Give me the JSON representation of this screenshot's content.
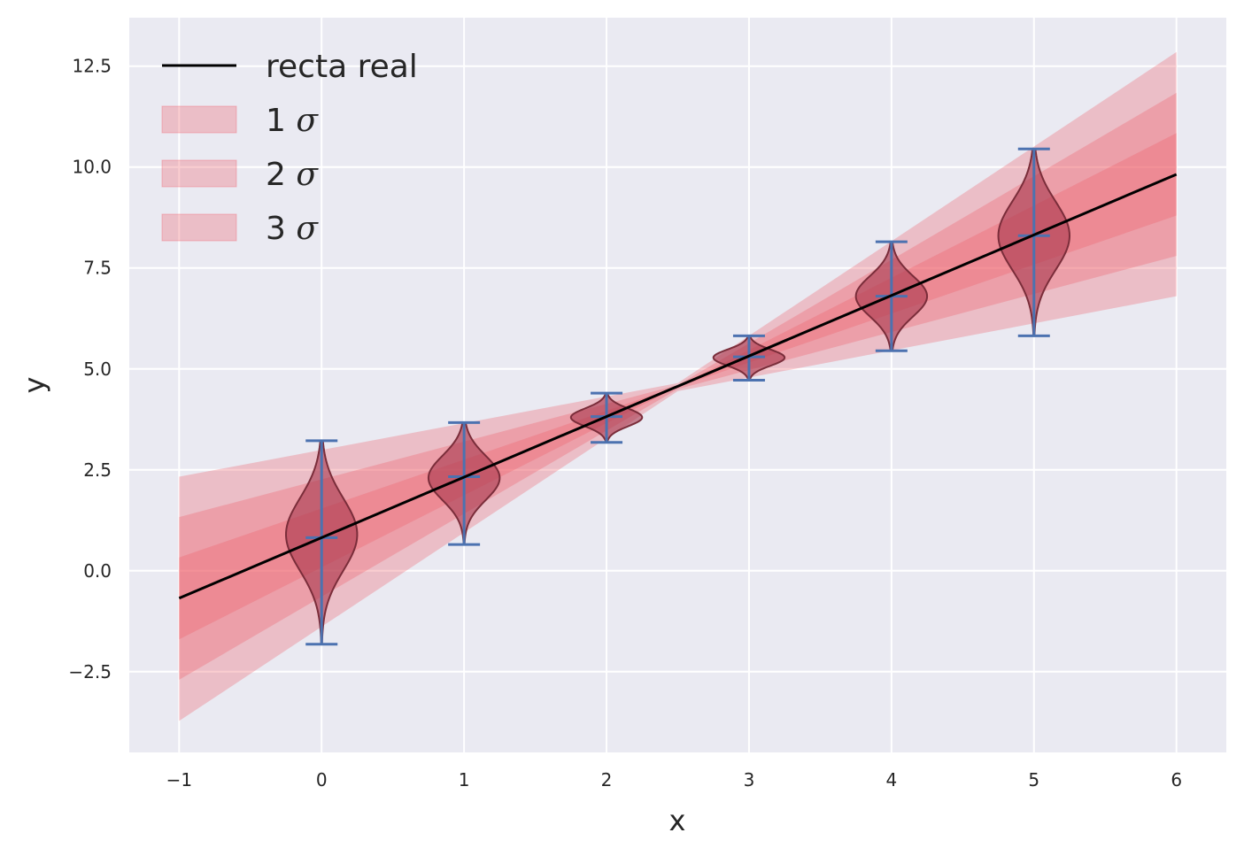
{
  "chart_data": {
    "type": "line",
    "xlabel": "x",
    "ylabel": "y",
    "xlim": [
      -1.35,
      6.35
    ],
    "ylim": [
      -4.5,
      13.7
    ],
    "x_ticks": [
      -1,
      0,
      1,
      2,
      3,
      4,
      5,
      6
    ],
    "x_tick_labels": [
      "−1",
      "0",
      "1",
      "2",
      "3",
      "4",
      "5",
      "6"
    ],
    "y_ticks": [
      -2.5,
      0.0,
      2.5,
      5.0,
      7.5,
      10.0,
      12.5
    ],
    "y_tick_labels": [
      "−2.5",
      "0.0",
      "2.5",
      "5.0",
      "7.5",
      "10.0",
      "12.5"
    ],
    "grid": true,
    "legend_position": "top-left",
    "colors": {
      "line": "#000000",
      "band": "#f05a64",
      "violin_fill": "#a8374d",
      "violin_edge": "#7a2d3a",
      "errorbar": "#4c72b0",
      "axes_bg": "#eaeaf2",
      "grid": "#ffffff"
    },
    "true_line": {
      "name": "recta real",
      "x": [
        -1,
        6
      ],
      "y": [
        -0.68,
        9.82
      ]
    },
    "bands": [
      {
        "name": "1",
        "symbol": "σ",
        "x": [
          -1,
          2.5,
          6
        ],
        "lower": [
          -1.7,
          4.55,
          8.8
        ],
        "upper": [
          0.33,
          4.57,
          10.84
        ]
      },
      {
        "name": "2",
        "symbol": "σ",
        "x": [
          -1,
          2.5,
          6
        ],
        "lower": [
          -2.7,
          4.5,
          7.8
        ],
        "upper": [
          1.33,
          4.6,
          11.84
        ]
      },
      {
        "name": "3",
        "symbol": "σ",
        "x": [
          -1,
          2.5,
          6
        ],
        "lower": [
          -3.72,
          4.45,
          6.8
        ],
        "upper": [
          2.33,
          4.65,
          12.85
        ]
      }
    ],
    "violins": [
      {
        "x": 0,
        "min": -1.82,
        "max": 3.22,
        "mean": 0.82,
        "center": 0.9,
        "spread": 0.9,
        "halfwidth": 0.25
      },
      {
        "x": 1,
        "min": 0.65,
        "max": 3.67,
        "mean": 2.33,
        "center": 2.3,
        "spread": 0.55,
        "halfwidth": 0.25
      },
      {
        "x": 2,
        "min": 3.18,
        "max": 4.4,
        "mean": 3.82,
        "center": 3.8,
        "spread": 0.22,
        "halfwidth": 0.25
      },
      {
        "x": 3,
        "min": 4.72,
        "max": 5.82,
        "mean": 5.3,
        "center": 5.28,
        "spread": 0.2,
        "halfwidth": 0.25
      },
      {
        "x": 4,
        "min": 5.45,
        "max": 8.15,
        "mean": 6.8,
        "center": 6.8,
        "spread": 0.5,
        "halfwidth": 0.25
      },
      {
        "x": 5,
        "min": 5.82,
        "max": 10.45,
        "mean": 8.3,
        "center": 8.3,
        "spread": 0.85,
        "halfwidth": 0.25
      }
    ]
  }
}
